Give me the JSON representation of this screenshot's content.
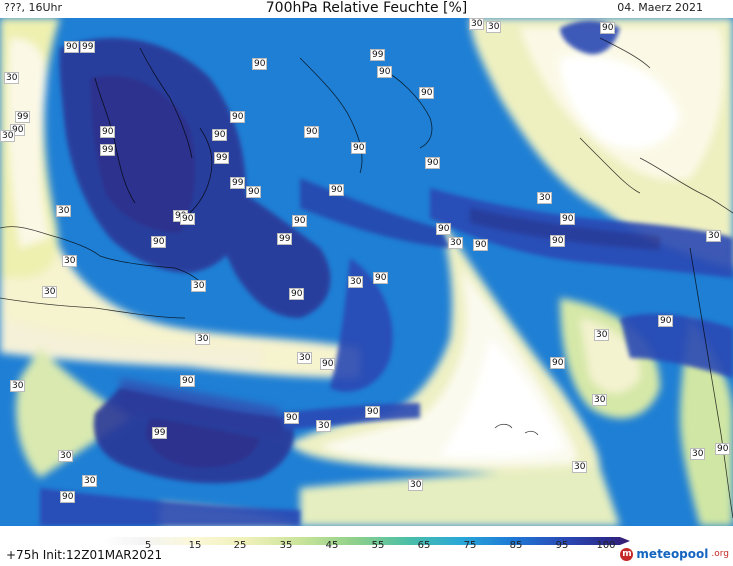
{
  "header": {
    "location_time": "???, 16Uhr",
    "title": "700hPa Relative Feuchte [%]",
    "date": "04. Maerz 2021"
  },
  "legend": {
    "ticks": [
      "5",
      "15",
      "25",
      "35",
      "45",
      "55",
      "65",
      "75",
      "85",
      "95",
      "100"
    ],
    "colors": [
      "#f4f4f4",
      "#fbf8d8",
      "#eef0b8",
      "#c9e39a",
      "#8fd08a",
      "#4cbfa6",
      "#2aa8d8",
      "#1e78d6",
      "#2a48b4",
      "#2a2a8c",
      "#3a1a70"
    ]
  },
  "footer": {
    "init": "+75h  Init:12Z01MAR2021",
    "logo_main": "meteopool",
    "logo_suffix": ".org",
    "logo_mark": "m"
  },
  "labels": [
    {
      "t": "90"
    },
    {
      "t": "99"
    },
    {
      "t": "30"
    },
    {
      "t": "99"
    },
    {
      "t": "90"
    },
    {
      "t": "90"
    },
    {
      "t": "30"
    },
    {
      "t": "99"
    },
    {
      "t": "90"
    },
    {
      "t": "90"
    },
    {
      "t": "99"
    },
    {
      "t": "90"
    },
    {
      "t": "90"
    },
    {
      "t": "90"
    },
    {
      "t": "90"
    },
    {
      "t": "90"
    },
    {
      "t": "90"
    },
    {
      "t": "99"
    },
    {
      "t": "90"
    },
    {
      "t": "90"
    },
    {
      "t": "30"
    },
    {
      "t": "30"
    },
    {
      "t": "90"
    },
    {
      "t": "90"
    },
    {
      "t": "90"
    },
    {
      "t": "30"
    },
    {
      "t": "90"
    },
    {
      "t": "30"
    },
    {
      "t": "99"
    },
    {
      "t": "90"
    },
    {
      "t": "90"
    },
    {
      "t": "30"
    },
    {
      "t": "90"
    },
    {
      "t": "30"
    },
    {
      "t": "30"
    },
    {
      "t": "90"
    },
    {
      "t": "30"
    },
    {
      "t": "30"
    },
    {
      "t": "90"
    },
    {
      "t": "99"
    },
    {
      "t": "99"
    },
    {
      "t": "90"
    },
    {
      "t": "30"
    },
    {
      "t": "30"
    },
    {
      "t": "30"
    },
    {
      "t": "90"
    },
    {
      "t": "30"
    },
    {
      "t": "90"
    },
    {
      "t": "30"
    },
    {
      "t": "90"
    },
    {
      "t": "30"
    },
    {
      "t": "90"
    },
    {
      "t": "90"
    },
    {
      "t": "30"
    },
    {
      "t": "90"
    },
    {
      "t": "30"
    },
    {
      "t": "90"
    },
    {
      "t": "30"
    },
    {
      "t": "30"
    },
    {
      "t": "30"
    },
    {
      "t": "30"
    },
    {
      "t": "90"
    },
    {
      "t": "99"
    }
  ]
}
